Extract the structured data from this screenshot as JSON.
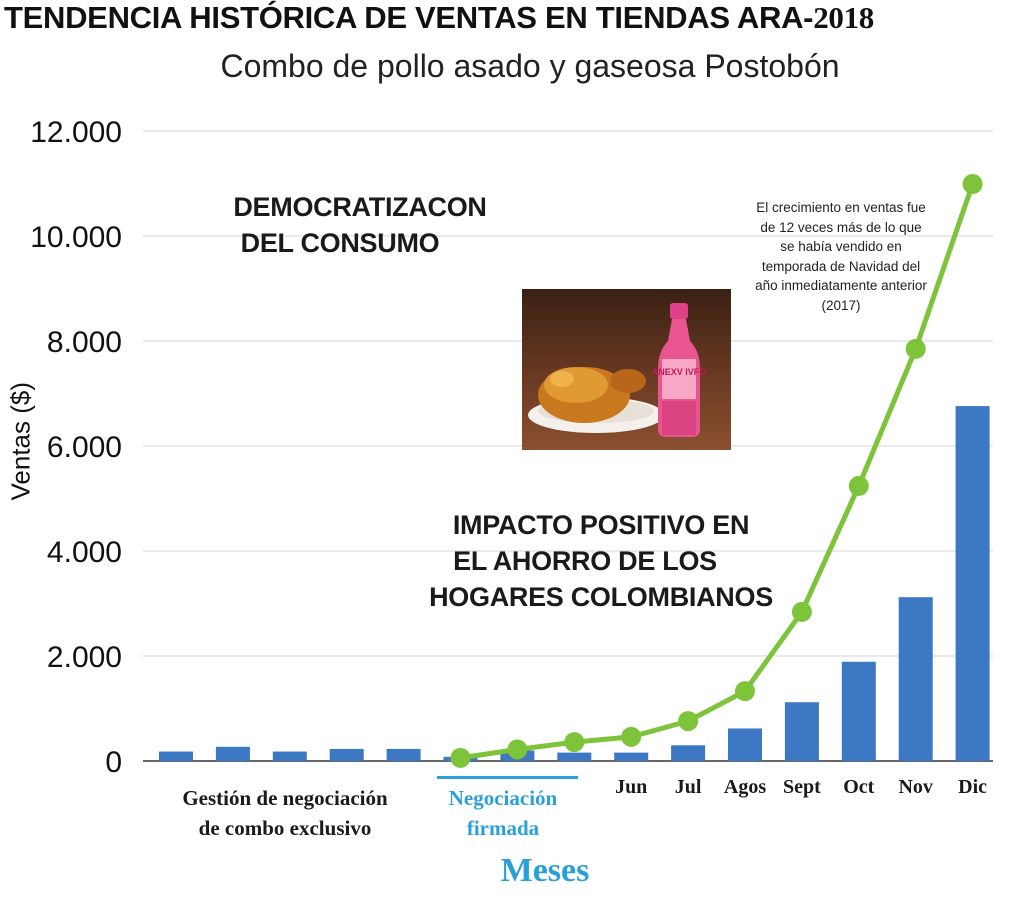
{
  "header": {
    "title": "TENDENCIA HISTÓRICA DE VENTAS EN TIENDAS ARA-",
    "title_year": "2018",
    "subtitle": "Combo de pollo asado y gaseosa Postobón"
  },
  "annotations": {
    "democratizacion_line1": "DEMOCRATIZACON",
    "democratizacion_line2": "DEL CONSUMO",
    "impacto_line1": "IMPACTO POSITIVO EN",
    "impacto_line2": "EL AHORRO DE LOS",
    "impacto_line3": "HOGARES COLOMBIANOS",
    "growth_note": "El crecimiento en ventas fue de 12 veces más de lo que se había vendido en temporada de Navidad del año inmediatamente anterior (2017)"
  },
  "image": {
    "bottle_label": "ANEXV IVFO",
    "icon": "roast-chicken-and-soda-photo"
  },
  "chart_data": {
    "type": "bar",
    "title": "TENDENCIA HISTÓRICA DE VENTAS EN TIENDAS ARA-2018",
    "subtitle": "Combo de pollo asado y gaseosa Postobón",
    "xlabel": "Meses",
    "ylabel": "Ventas ($)",
    "ylim": [
      0,
      12000
    ],
    "yticks": [
      0,
      2000,
      4000,
      6000,
      8000,
      10000,
      12000
    ],
    "ytick_labels": [
      "0",
      "2.000",
      "4.000",
      "6.000",
      "8.000",
      "10.000",
      "12.000"
    ],
    "grid": true,
    "categories": [
      "",
      "",
      "",
      "",
      "",
      "",
      "",
      "",
      "Jun",
      "Jul",
      "Agos",
      "Sept",
      "Oct",
      "Nov",
      "Dic"
    ],
    "category_groups": [
      {
        "label_line1": "Gestión de negociación",
        "label_line2": "de combo exclusivo",
        "from": 0,
        "to": 4,
        "color": "#1a1a1a"
      },
      {
        "label_line1": "Negociación",
        "label_line2": "firmada",
        "from": 5,
        "to": 7,
        "color": "#2aa0db"
      }
    ],
    "series": [
      {
        "name": "Ventas",
        "type": "bar",
        "color": "#3c78c3",
        "values": [
          180,
          270,
          180,
          230,
          230,
          80,
          200,
          160,
          160,
          300,
          620,
          1120,
          1890,
          3120,
          6760
        ]
      },
      {
        "name": "Tendencia",
        "type": "line",
        "color": "#7dc43b",
        "values": [
          null,
          null,
          null,
          null,
          null,
          60,
          220,
          360,
          460,
          760,
          1330,
          2840,
          5240,
          7850,
          10990
        ]
      }
    ]
  }
}
